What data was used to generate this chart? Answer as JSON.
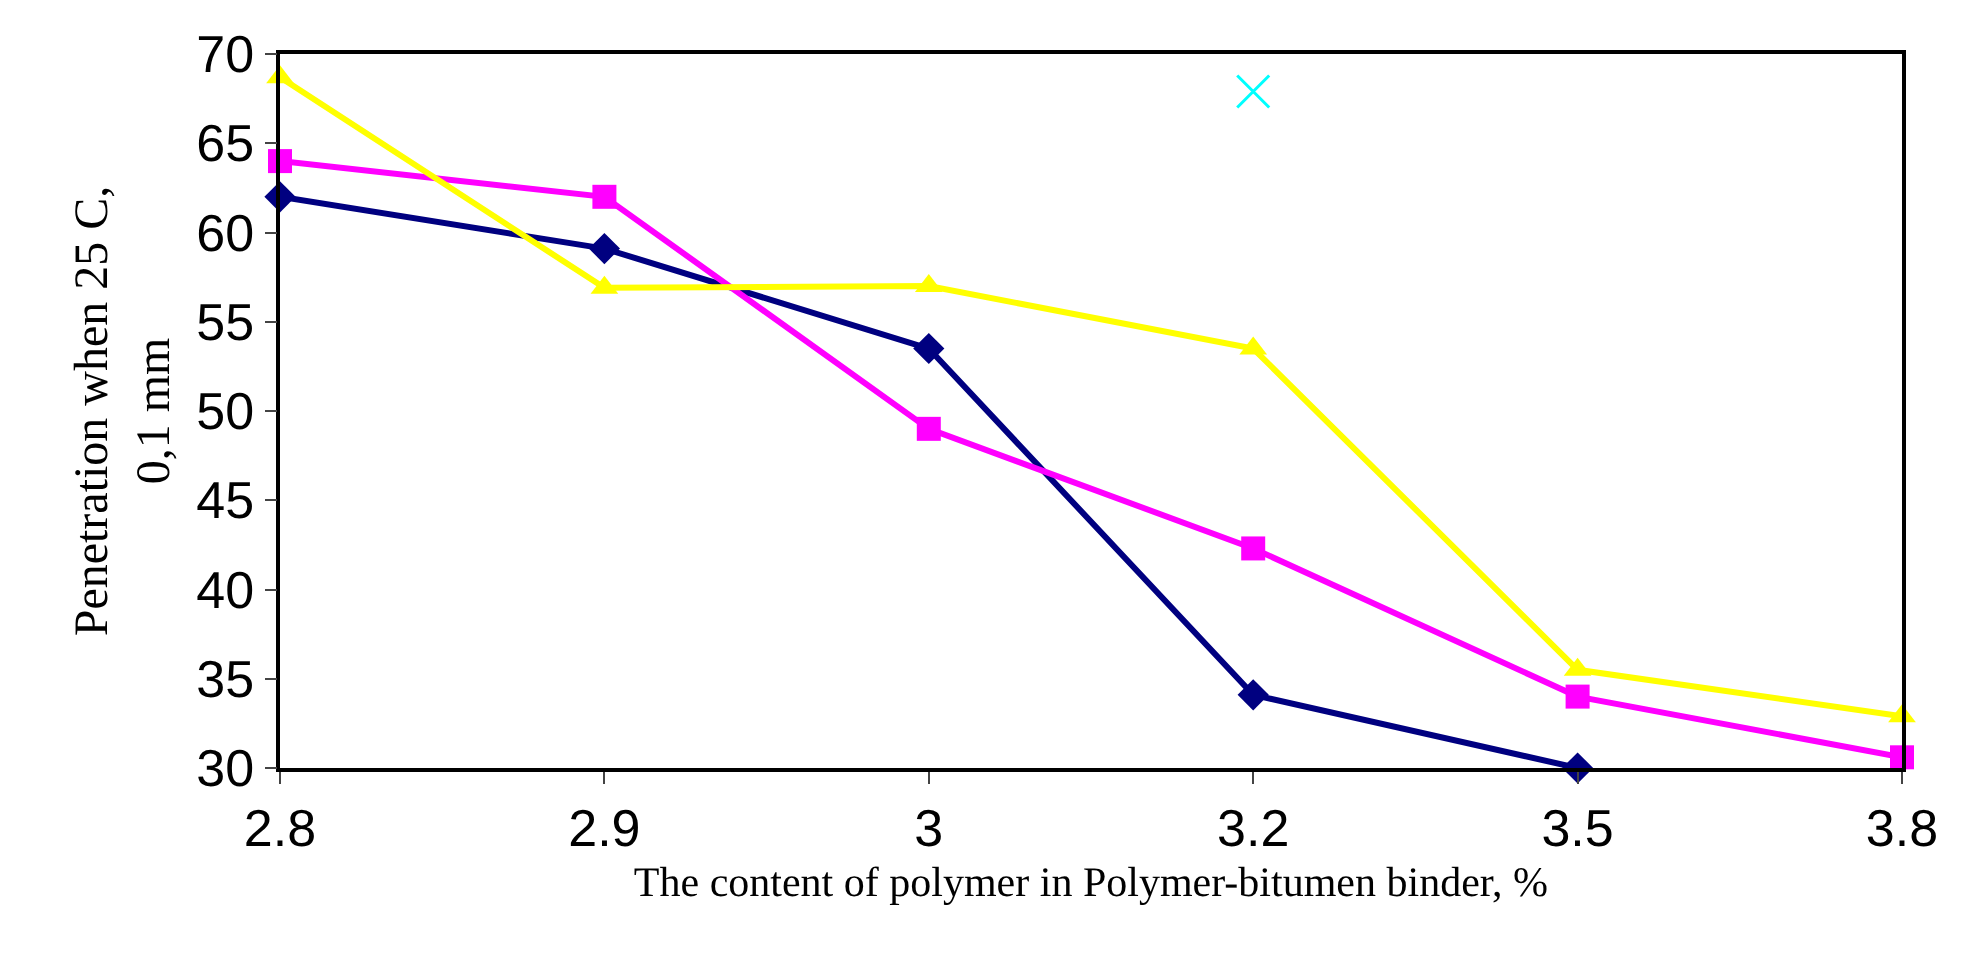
{
  "chart_data": {
    "type": "line",
    "xlabel": "The content of polymer in Polymer-bitumen binder, %",
    "ylabel": "Penetration when 25 C,\n0,1 mm",
    "categories": [
      "2.8",
      "2.9",
      "3",
      "3.2",
      "3.5",
      "3.8"
    ],
    "ylim": [
      30,
      70
    ],
    "yticks": [
      30,
      35,
      40,
      45,
      50,
      55,
      60,
      65,
      70
    ],
    "series": [
      {
        "color": "#000080",
        "marker": "diamond",
        "values": [
          62.0,
          59.1,
          53.5,
          34.1,
          30,
          null
        ]
      },
      {
        "color": "#ff00ff",
        "marker": "square",
        "values": [
          64.0,
          62.0,
          49.0,
          42.3,
          34.0,
          30.6
        ]
      },
      {
        "color": "#ffff00",
        "marker": "triangle",
        "values": [
          68.7,
          56.9,
          57.0,
          53.5,
          35.5,
          32.9
        ]
      },
      {
        "type": "scatter",
        "color": "#00ffff",
        "marker": "cross",
        "values": [
          null,
          null,
          null,
          67.9,
          null,
          null
        ]
      }
    ]
  }
}
